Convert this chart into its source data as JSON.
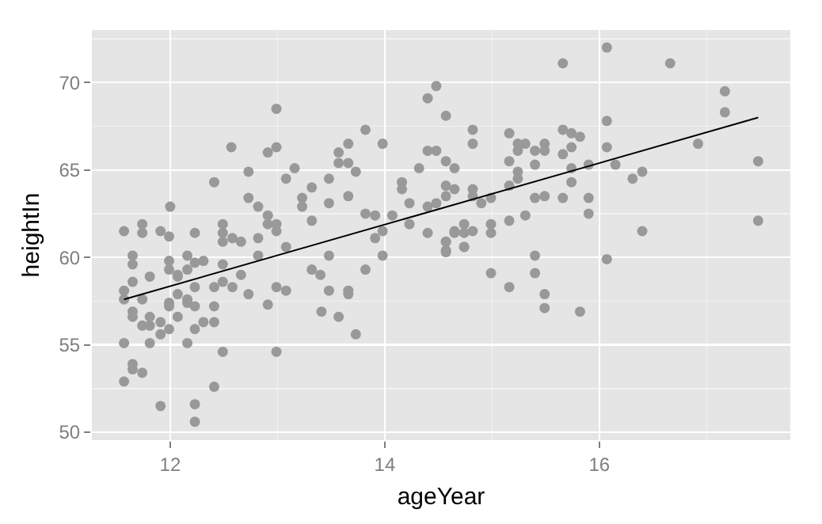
{
  "chart_data": {
    "type": "scatter",
    "xlabel": "ageYear",
    "ylabel": "heightIn",
    "xlim": [
      11.27,
      17.78
    ],
    "ylim": [
      49.55,
      73.0
    ],
    "xticks": [
      12,
      14,
      16
    ],
    "yticks": [
      50,
      55,
      60,
      65,
      70
    ],
    "grid": true,
    "series": [
      {
        "color": "#999999",
        "marker": "circle",
        "x": [
          11.57,
          11.74,
          11.74,
          11.91,
          11.99,
          12.0,
          12.23,
          12.41,
          12.49,
          12.49,
          12.49,
          12.57,
          12.58,
          12.66,
          12.73,
          12.73,
          12.82,
          12.82,
          12.91,
          12.91,
          12.91,
          12.99,
          12.99,
          12.99,
          12.99,
          13.08,
          13.08,
          13.16,
          13.23,
          13.23,
          13.32,
          13.32,
          13.48,
          13.48,
          13.57,
          13.57,
          13.66,
          13.66,
          13.66,
          13.73,
          13.82,
          13.82,
          13.91,
          13.91,
          13.98,
          13.98,
          14.07,
          14.16,
          14.16,
          14.23,
          14.23,
          14.32,
          14.4,
          14.48,
          14.4,
          14.48,
          14.57,
          14.57,
          14.65,
          14.57,
          14.57,
          14.65,
          14.4,
          14.48,
          14.4,
          14.65,
          14.65,
          14.74,
          14.74,
          14.82,
          14.74,
          14.57,
          14.57,
          14.82,
          14.82,
          14.82,
          14.82,
          14.9,
          14.99,
          14.99,
          14.99,
          15.16,
          15.16,
          15.16,
          15.16,
          15.24,
          15.24,
          15.24,
          15.24,
          15.31,
          15.31,
          15.4,
          15.4,
          15.4,
          15.49,
          15.49,
          15.49,
          15.66,
          15.66,
          15.66,
          15.66,
          15.74,
          15.74,
          15.74,
          15.74,
          15.82,
          15.9,
          15.9,
          15.9,
          16.07,
          16.07,
          16.07,
          16.15,
          16.31,
          16.4,
          16.4,
          16.66,
          16.92,
          17.17,
          17.17,
          17.48,
          17.48,
          11.57,
          11.65,
          11.65,
          11.65,
          11.74,
          11.81,
          11.99,
          11.99,
          11.57,
          11.65,
          11.65,
          11.74,
          11.81,
          11.81,
          11.91,
          11.91,
          11.99,
          11.99,
          11.99,
          12.07,
          12.07,
          12.07,
          12.07,
          12.16,
          12.16,
          12.23,
          12.23,
          12.16,
          12.16,
          12.23,
          12.23,
          12.31,
          12.16,
          12.31,
          12.41,
          12.41,
          12.41,
          12.49,
          12.49,
          12.58,
          12.66,
          12.73,
          12.82,
          12.91,
          12.99,
          13.08,
          13.32,
          13.4,
          13.48,
          13.48,
          13.41,
          13.57,
          13.66,
          13.66,
          13.73,
          13.82,
          13.98,
          11.57,
          11.65,
          11.65,
          11.74,
          11.81,
          12.49,
          12.41,
          12.99,
          11.91,
          12.23,
          12.23,
          11.57,
          14.57,
          14.57,
          14.74,
          14.99,
          15.16,
          15.4,
          15.4,
          15.49,
          15.49,
          15.82,
          16.07
        ],
        "values": [
          61.5,
          61.9,
          61.4,
          61.5,
          61.2,
          62.9,
          61.4,
          64.3,
          61.9,
          61.4,
          60.9,
          66.3,
          61.1,
          60.9,
          64.9,
          63.4,
          61.1,
          62.9,
          62.4,
          61.9,
          66.0,
          66.3,
          68.5,
          61.9,
          61.5,
          64.5,
          60.6,
          65.1,
          63.4,
          62.9,
          64.0,
          62.1,
          64.5,
          63.1,
          66.0,
          65.4,
          66.5,
          65.4,
          63.5,
          64.9,
          67.3,
          62.5,
          62.4,
          61.1,
          66.5,
          61.5,
          62.4,
          64.3,
          63.9,
          63.1,
          61.9,
          65.1,
          69.1,
          69.8,
          66.1,
          66.1,
          68.1,
          65.5,
          65.1,
          64.1,
          63.5,
          63.9,
          62.9,
          63.1,
          61.4,
          61.5,
          61.4,
          61.9,
          61.4,
          61.5,
          60.6,
          60.9,
          60.4,
          67.3,
          66.5,
          63.9,
          63.5,
          63.1,
          63.4,
          61.9,
          61.4,
          67.1,
          65.5,
          64.1,
          62.1,
          66.5,
          66.1,
          64.9,
          64.5,
          66.5,
          62.4,
          66.1,
          65.3,
          63.4,
          66.5,
          66.1,
          63.5,
          71.1,
          67.3,
          65.9,
          63.4,
          67.1,
          66.3,
          65.1,
          64.3,
          66.9,
          65.3,
          63.4,
          62.5,
          72.0,
          67.8,
          66.3,
          65.3,
          64.5,
          64.9,
          61.5,
          71.1,
          66.5,
          69.5,
          68.3,
          65.5,
          62.1,
          58.1,
          60.1,
          59.6,
          58.6,
          57.6,
          58.9,
          59.3,
          59.8,
          57.6,
          56.9,
          56.6,
          56.1,
          56.6,
          56.1,
          56.3,
          55.6,
          57.4,
          57.2,
          55.9,
          57.9,
          58.9,
          59.0,
          56.6,
          59.3,
          60.1,
          59.7,
          58.3,
          57.6,
          57.4,
          57.2,
          55.9,
          56.3,
          55.1,
          59.8,
          56.3,
          57.2,
          58.3,
          58.6,
          59.6,
          58.3,
          59.0,
          57.9,
          60.1,
          57.3,
          58.3,
          58.1,
          59.3,
          59.0,
          60.1,
          58.1,
          56.9,
          56.6,
          57.9,
          58.1,
          55.6,
          59.3,
          60.1,
          55.1,
          53.9,
          53.6,
          53.4,
          55.1,
          54.6,
          52.6,
          54.6,
          51.5,
          51.6,
          50.6,
          52.9,
          60.9,
          60.3,
          60.6,
          59.1,
          58.3,
          60.1,
          59.1,
          57.9,
          57.1,
          56.9,
          59.9
        ]
      },
      {
        "type": "line",
        "color": "#000000",
        "marker": "none",
        "x": [
          11.57,
          17.48
        ],
        "values": [
          57.6,
          68.0
        ]
      }
    ]
  }
}
